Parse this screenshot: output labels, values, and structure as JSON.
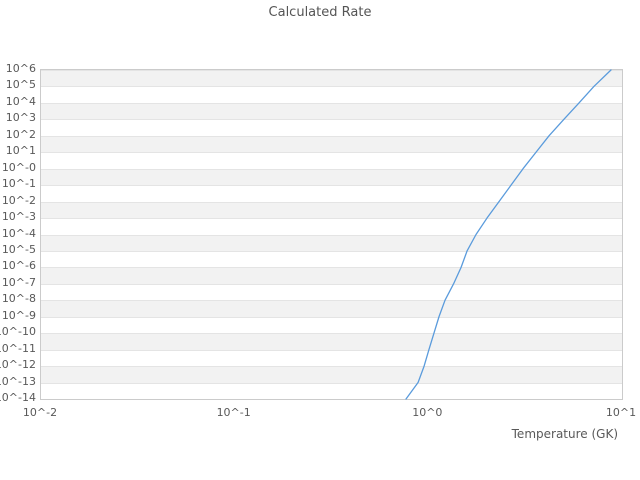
{
  "title": "Calculated Rate",
  "x_axis_title": "Temperature (GK)",
  "chart_data": {
    "type": "line",
    "title": "Calculated Rate",
    "xlabel": "Temperature (GK)",
    "ylabel": "",
    "xscale": "log",
    "yscale": "log",
    "xlim": [
      0.01,
      10
    ],
    "ylim": [
      1e-14,
      1000000.0
    ],
    "grid": "horizontal-decade-bands",
    "legend_position": "none",
    "x_tick_labels": [
      "10^-2",
      "10^-1",
      "10^0",
      "10^1"
    ],
    "y_tick_labels": [
      "10^6",
      "10^5",
      "10^4",
      "10^3",
      "10^2",
      "10^1",
      "10^-0",
      "10^-1",
      "10^-2",
      "10^-3",
      "10^-4",
      "10^-5",
      "10^-6",
      "10^-7",
      "10^-8",
      "10^-9",
      "10^-10",
      "10^-11",
      "10^-12",
      "10^-13",
      "10^-14"
    ],
    "series": [
      {
        "name": "calculated-rate",
        "color": "#5a9bdc",
        "points": [
          [
            0.767,
            1e-14
          ],
          [
            0.885,
            1e-13
          ],
          [
            0.951,
            1e-12
          ],
          [
            1.007,
            1e-11
          ],
          [
            1.069,
            1e-10
          ],
          [
            1.135,
            1e-09
          ],
          [
            1.219,
            1e-08
          ],
          [
            1.35,
            1e-07
          ],
          [
            1.476,
            1e-06
          ],
          [
            1.585,
            1e-05
          ],
          [
            1.763,
            0.0001
          ],
          [
            2.009,
            0.001
          ],
          [
            2.317,
            0.01
          ],
          [
            2.673,
            0.1
          ],
          [
            3.083,
            1.0
          ],
          [
            3.597,
            10.0
          ],
          [
            4.198,
            100.0
          ],
          [
            5.012,
            1000.0
          ],
          [
            5.998,
            10000.0
          ],
          [
            7.161,
            100000.0
          ],
          [
            8.77,
            1000000.0
          ]
        ]
      }
    ]
  },
  "colors": {
    "band_gray": "#f2f2f2",
    "band_white": "#ffffff",
    "gridline": "#e4e4e4",
    "border": "#cbcbcb",
    "line": "#5a9bdc",
    "text": "#595959"
  }
}
